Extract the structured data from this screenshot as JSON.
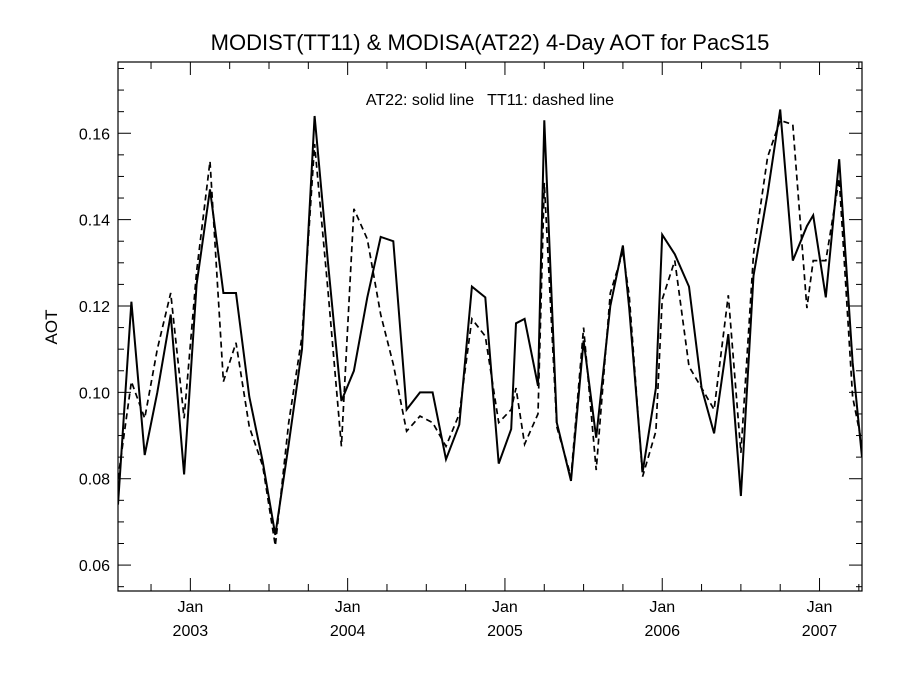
{
  "chart_data": {
    "type": "line",
    "title": "MODIST(TT11) & MODISA(AT22) 4-Day AOT for PacS15",
    "annotation": "AT22: solid line   TT11: dashed line",
    "xlabel": "",
    "ylabel": "AOT",
    "xlim": [
      2002.54,
      2007.27
    ],
    "ylim": [
      0.054,
      0.1765
    ],
    "y_ticks": [
      "0.06",
      "0.08",
      "0.10",
      "0.12",
      "0.14",
      "0.16"
    ],
    "y_tick_values": [
      0.06,
      0.08,
      0.1,
      0.12,
      0.14,
      0.16
    ],
    "x_major_ticks": [
      {
        "x": 2003.0,
        "month": "Jan",
        "year": "2003"
      },
      {
        "x": 2004.0,
        "month": "Jan",
        "year": "2004"
      },
      {
        "x": 2005.0,
        "month": "Jan",
        "year": "2005"
      },
      {
        "x": 2006.0,
        "month": "Jan",
        "year": "2006"
      },
      {
        "x": 2007.0,
        "month": "Jan",
        "year": "2007"
      }
    ],
    "x_minor_step_years": 0.25,
    "series": [
      {
        "name": "AT22",
        "style": "solid",
        "color": "#000000",
        "points": [
          [
            2002.54,
            0.074
          ],
          [
            2002.625,
            0.121
          ],
          [
            2002.71,
            0.0855
          ],
          [
            2002.79,
            0.1
          ],
          [
            2002.875,
            0.118
          ],
          [
            2002.96,
            0.081
          ],
          [
            2003.04,
            0.125
          ],
          [
            2003.125,
            0.147
          ],
          [
            2003.21,
            0.123
          ],
          [
            2003.29,
            0.123
          ],
          [
            2003.375,
            0.099
          ],
          [
            2003.46,
            0.084
          ],
          [
            2003.54,
            0.067
          ],
          [
            2003.625,
            0.088
          ],
          [
            2003.71,
            0.11
          ],
          [
            2003.79,
            0.164
          ],
          [
            2003.875,
            0.13
          ],
          [
            2003.96,
            0.098
          ],
          [
            2004.04,
            0.105
          ],
          [
            2004.125,
            0.122
          ],
          [
            2004.21,
            0.136
          ],
          [
            2004.29,
            0.135
          ],
          [
            2004.375,
            0.096
          ],
          [
            2004.46,
            0.1
          ],
          [
            2004.54,
            0.1
          ],
          [
            2004.625,
            0.0845
          ],
          [
            2004.71,
            0.0925
          ],
          [
            2004.79,
            0.1245
          ],
          [
            2004.875,
            0.122
          ],
          [
            2004.96,
            0.0835
          ],
          [
            2005.04,
            0.0915
          ],
          [
            2005.07,
            0.116
          ],
          [
            2005.125,
            0.117
          ],
          [
            2005.21,
            0.1015
          ],
          [
            2005.25,
            0.163
          ],
          [
            2005.33,
            0.093
          ],
          [
            2005.42,
            0.0795
          ],
          [
            2005.5,
            0.112
          ],
          [
            2005.58,
            0.0895
          ],
          [
            2005.67,
            0.12
          ],
          [
            2005.75,
            0.134
          ],
          [
            2005.79,
            0.1195
          ],
          [
            2005.875,
            0.0815
          ],
          [
            2005.96,
            0.101
          ],
          [
            2006.0,
            0.1365
          ],
          [
            2006.08,
            0.132
          ],
          [
            2006.17,
            0.1245
          ],
          [
            2006.25,
            0.101
          ],
          [
            2006.33,
            0.0905
          ],
          [
            2006.42,
            0.1135
          ],
          [
            2006.5,
            0.076
          ],
          [
            2006.58,
            0.127
          ],
          [
            2006.67,
            0.146
          ],
          [
            2006.75,
            0.1655
          ],
          [
            2006.83,
            0.1305
          ],
          [
            2006.92,
            0.1385
          ],
          [
            2006.96,
            0.141
          ],
          [
            2007.04,
            0.122
          ],
          [
            2007.125,
            0.154
          ],
          [
            2007.21,
            0.107
          ],
          [
            2007.27,
            0.085
          ]
        ]
      },
      {
        "name": "TT11",
        "style": "dashed",
        "color": "#000000",
        "points": [
          [
            2002.54,
            0.08
          ],
          [
            2002.625,
            0.1025
          ],
          [
            2002.71,
            0.094
          ],
          [
            2002.79,
            0.11
          ],
          [
            2002.875,
            0.123
          ],
          [
            2002.96,
            0.094
          ],
          [
            2003.04,
            0.128
          ],
          [
            2003.125,
            0.1535
          ],
          [
            2003.21,
            0.1025
          ],
          [
            2003.29,
            0.1115
          ],
          [
            2003.375,
            0.092
          ],
          [
            2003.46,
            0.083
          ],
          [
            2003.54,
            0.0645
          ],
          [
            2003.625,
            0.093
          ],
          [
            2003.71,
            0.113
          ],
          [
            2003.79,
            0.1575
          ],
          [
            2003.875,
            0.1235
          ],
          [
            2003.96,
            0.0875
          ],
          [
            2004.04,
            0.1425
          ],
          [
            2004.125,
            0.1355
          ],
          [
            2004.21,
            0.118
          ],
          [
            2004.29,
            0.1065
          ],
          [
            2004.375,
            0.091
          ],
          [
            2004.46,
            0.0945
          ],
          [
            2004.54,
            0.093
          ],
          [
            2004.625,
            0.0875
          ],
          [
            2004.71,
            0.095
          ],
          [
            2004.79,
            0.117
          ],
          [
            2004.875,
            0.113
          ],
          [
            2004.96,
            0.093
          ],
          [
            2005.04,
            0.096
          ],
          [
            2005.07,
            0.101
          ],
          [
            2005.125,
            0.088
          ],
          [
            2005.21,
            0.095
          ],
          [
            2005.25,
            0.1485
          ],
          [
            2005.33,
            0.092
          ],
          [
            2005.42,
            0.0805
          ],
          [
            2005.5,
            0.115
          ],
          [
            2005.58,
            0.082
          ],
          [
            2005.67,
            0.123
          ],
          [
            2005.75,
            0.1325
          ],
          [
            2005.79,
            0.1225
          ],
          [
            2005.875,
            0.0805
          ],
          [
            2005.96,
            0.091
          ],
          [
            2006.0,
            0.1215
          ],
          [
            2006.08,
            0.1305
          ],
          [
            2006.17,
            0.106
          ],
          [
            2006.25,
            0.101
          ],
          [
            2006.33,
            0.096
          ],
          [
            2006.42,
            0.1225
          ],
          [
            2006.5,
            0.086
          ],
          [
            2006.58,
            0.132
          ],
          [
            2006.67,
            0.1545
          ],
          [
            2006.75,
            0.163
          ],
          [
            2006.83,
            0.162
          ],
          [
            2006.92,
            0.1195
          ],
          [
            2006.96,
            0.1305
          ],
          [
            2007.04,
            0.1305
          ],
          [
            2007.125,
            0.1495
          ],
          [
            2007.21,
            0.099
          ],
          [
            2007.27,
            0.088
          ]
        ]
      }
    ]
  }
}
